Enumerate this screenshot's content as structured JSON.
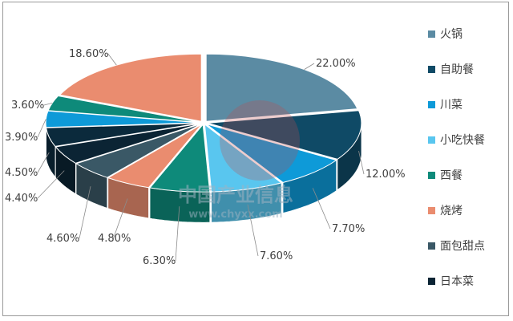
{
  "chart_data": {
    "type": "pie",
    "style": "3d-exploded",
    "title": "",
    "series": [
      {
        "name": "火锅",
        "value": 22.0,
        "label": "22.00%",
        "color": "#5b8ba3"
      },
      {
        "name": "自助餐",
        "value": 12.0,
        "label": "12.00%",
        "color": "#0f4a66"
      },
      {
        "name": "川菜",
        "value": 7.7,
        "label": "7.70%",
        "color": "#0e9ad8"
      },
      {
        "name": "小吃快餐",
        "value": 7.6,
        "label": "7.60%",
        "color": "#59c6ef"
      },
      {
        "name": "西餐",
        "value": 6.3,
        "label": "6.30%",
        "color": "#0e8a7a"
      },
      {
        "name": "烧烤",
        "value": 4.8,
        "label": "4.80%",
        "color": "#ea8c6f"
      },
      {
        "name": "面包甜点",
        "value": 4.6,
        "label": "4.60%",
        "color": "#3a5866"
      },
      {
        "name": "日本菜",
        "value": 4.4,
        "label": "4.40%",
        "color": "#0b2434"
      },
      {
        "name": "",
        "value": 4.5,
        "label": "4.50%",
        "color": "#0b2a3c"
      },
      {
        "name": "",
        "value": 3.9,
        "label": "3.90%",
        "color": "#0e9ad8"
      },
      {
        "name": "",
        "value": 3.6,
        "label": "3.60%",
        "color": "#0e8a7a"
      },
      {
        "name": "",
        "value": 18.6,
        "label": "18.60%",
        "color": "#ea8c6f"
      }
    ],
    "legend": {
      "position": "right",
      "items": [
        {
          "name": "火锅",
          "color": "#5b8ba3"
        },
        {
          "name": "自助餐",
          "color": "#0f4a66"
        },
        {
          "name": "川菜",
          "color": "#0e9ad8"
        },
        {
          "name": "小吃快餐",
          "color": "#59c6ef"
        },
        {
          "name": "西餐",
          "color": "#0e8a7a"
        },
        {
          "name": "烧烤",
          "color": "#ea8c6f"
        },
        {
          "name": "面包甜点",
          "color": "#3a5866"
        },
        {
          "name": "日本菜",
          "color": "#0b2434"
        }
      ]
    }
  },
  "watermark": {
    "text": "中国产业信息",
    "url": "www.chyxx.com"
  }
}
